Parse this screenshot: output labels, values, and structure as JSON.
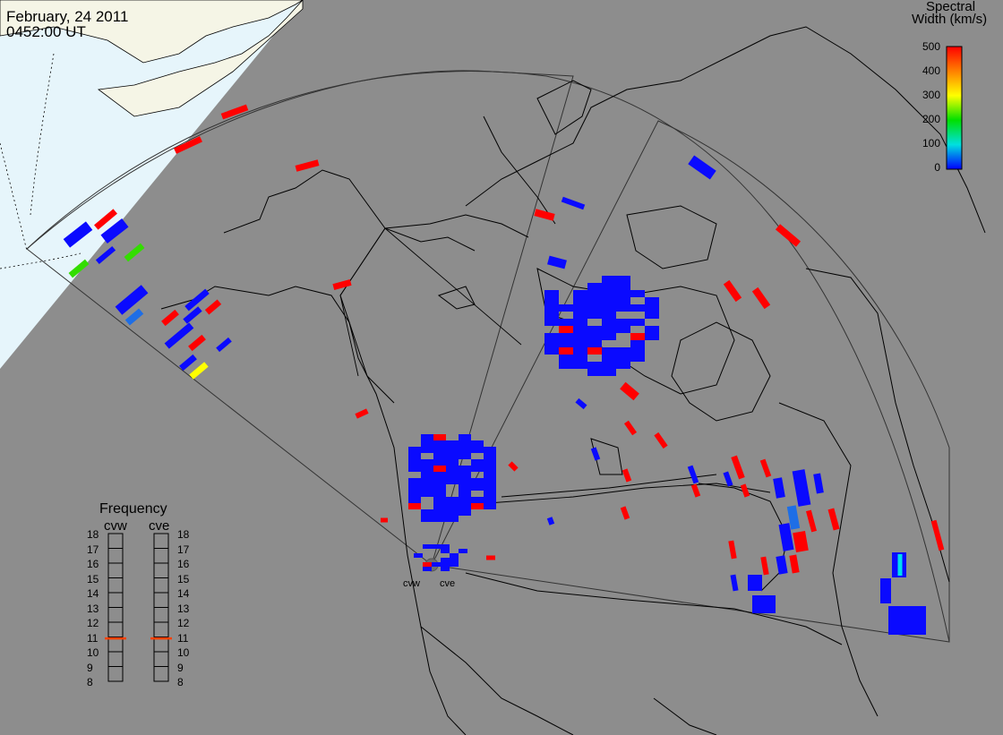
{
  "header": {
    "date": "February, 24 2011",
    "time": "0452:00 UT"
  },
  "colorbar": {
    "title_line1": "Spectral",
    "title_line2": "Width (km/s)",
    "ticks": [
      "500",
      "400",
      "300",
      "200",
      "100",
      "0"
    ],
    "range": [
      0,
      500
    ],
    "colors": [
      "#ff0000",
      "#ff8000",
      "#ffff00",
      "#00e000",
      "#00e0e0",
      "#0000ff"
    ]
  },
  "frequency_panel": {
    "title": "Frequency",
    "radar_left": "cvw",
    "radar_right": "cve",
    "ticks": [
      "18",
      "17",
      "16",
      "15",
      "14",
      "13",
      "12",
      "11",
      "10",
      "9",
      "8"
    ],
    "cvw_value_mhz": 10.9,
    "cve_value_mhz": 10.9
  },
  "radars": {
    "west": "cvw",
    "east": "cve"
  },
  "map": {
    "background_color": "#8d8d8d",
    "daylight_ocean_color": "#e6f5fb",
    "daylight_land_color": "#f5f5e6",
    "coastline_color": "#000000"
  },
  "scatter": {
    "dominant_width_kms": "0-60",
    "color_scale": "spectral width"
  }
}
